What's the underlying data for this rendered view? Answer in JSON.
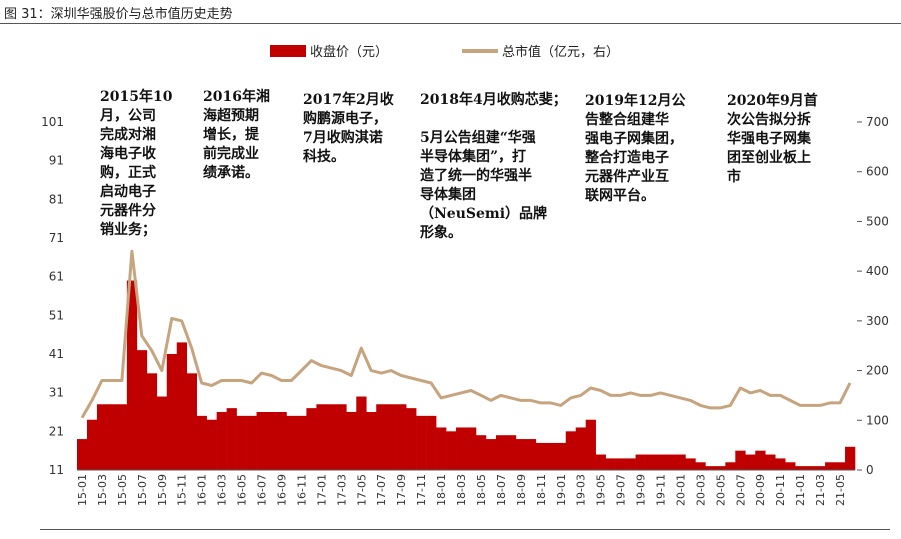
{
  "figure_title": "图 31：深圳华强股价与总市值历史走势",
  "chart_data": {
    "type": "bar+line",
    "series": [
      {
        "name": "收盘价（元）",
        "kind": "bar",
        "axis": "left",
        "color": "#C00000",
        "x": [
          "15-01",
          "15-02",
          "15-03",
          "15-04",
          "15-05",
          "15-06",
          "15-07",
          "15-08",
          "15-09",
          "15-10",
          "15-11",
          "15-12",
          "16-01",
          "16-02",
          "16-03",
          "16-04",
          "16-05",
          "16-06",
          "16-07",
          "16-08",
          "16-09",
          "16-10",
          "16-11",
          "16-12",
          "17-01",
          "17-02",
          "17-03",
          "17-04",
          "17-05",
          "17-06",
          "17-07",
          "17-08",
          "17-09",
          "17-10",
          "17-11",
          "17-12",
          "18-01",
          "18-02",
          "18-03",
          "18-04",
          "18-05",
          "18-06",
          "18-07",
          "18-08",
          "18-09",
          "18-10",
          "18-11",
          "18-12",
          "19-01",
          "19-02",
          "19-03",
          "19-04",
          "19-05",
          "19-06",
          "19-07",
          "19-08",
          "19-09",
          "19-10",
          "19-11",
          "19-12",
          "20-01",
          "20-02",
          "20-03",
          "20-04",
          "20-05",
          "20-06",
          "20-07",
          "20-08",
          "20-09",
          "20-10",
          "20-11",
          "20-12",
          "21-01",
          "21-02",
          "21-03",
          "21-04",
          "21-05",
          "21-06"
        ],
        "values": [
          19,
          24,
          28,
          28,
          28,
          60,
          42,
          36,
          30,
          41,
          44,
          36,
          25,
          24,
          26,
          27,
          25,
          25,
          26,
          26,
          26,
          25,
          25,
          27,
          28,
          28,
          28,
          26,
          30,
          26,
          28,
          28,
          28,
          27,
          25,
          25,
          22,
          21,
          22,
          22,
          20,
          19,
          20,
          20,
          19,
          19,
          18,
          18,
          18,
          21,
          22,
          24,
          15,
          14,
          14,
          14,
          15,
          15,
          15,
          15,
          15,
          14,
          13,
          12,
          12,
          13,
          16,
          15,
          16,
          15,
          14,
          13,
          12,
          12,
          12,
          13,
          13,
          17
        ]
      },
      {
        "name": "总市值（亿元，右）",
        "kind": "line",
        "axis": "right",
        "color": "#C6A47E",
        "x": [
          "15-01",
          "15-02",
          "15-03",
          "15-04",
          "15-05",
          "15-06",
          "15-07",
          "15-08",
          "15-09",
          "15-10",
          "15-11",
          "15-12",
          "16-01",
          "16-02",
          "16-03",
          "16-04",
          "16-05",
          "16-06",
          "16-07",
          "16-08",
          "16-09",
          "16-10",
          "16-11",
          "16-12",
          "17-01",
          "17-02",
          "17-03",
          "17-04",
          "17-05",
          "17-06",
          "17-07",
          "17-08",
          "17-09",
          "17-10",
          "17-11",
          "17-12",
          "18-01",
          "18-02",
          "18-03",
          "18-04",
          "18-05",
          "18-06",
          "18-07",
          "18-08",
          "18-09",
          "18-10",
          "18-11",
          "18-12",
          "19-01",
          "19-02",
          "19-03",
          "19-04",
          "19-05",
          "19-06",
          "19-07",
          "19-08",
          "19-09",
          "19-10",
          "19-11",
          "19-12",
          "20-01",
          "20-02",
          "20-03",
          "20-04",
          "20-05",
          "20-06",
          "20-07",
          "20-08",
          "20-09",
          "20-10",
          "20-11",
          "20-12",
          "21-01",
          "21-02",
          "21-03",
          "21-04",
          "21-05",
          "21-06"
        ],
        "values": [
          105,
          140,
          180,
          180,
          180,
          440,
          270,
          240,
          200,
          305,
          300,
          245,
          175,
          170,
          180,
          180,
          180,
          175,
          195,
          190,
          180,
          180,
          200,
          220,
          210,
          205,
          200,
          190,
          245,
          200,
          195,
          200,
          190,
          185,
          180,
          175,
          145,
          150,
          155,
          160,
          150,
          140,
          150,
          145,
          140,
          140,
          135,
          135,
          130,
          145,
          150,
          165,
          160,
          150,
          150,
          155,
          150,
          150,
          155,
          150,
          145,
          140,
          130,
          125,
          125,
          130,
          165,
          155,
          160,
          150,
          150,
          140,
          130,
          130,
          130,
          135,
          135,
          175
        ]
      }
    ],
    "x_tick_labels": [
      "15-01",
      "15-03",
      "15-05",
      "15-07",
      "15-09",
      "15-11",
      "16-01",
      "16-03",
      "16-05",
      "16-07",
      "16-09",
      "16-11",
      "17-01",
      "17-03",
      "17-05",
      "17-07",
      "17-09",
      "17-11",
      "18-01",
      "18-03",
      "18-05",
      "18-07",
      "18-09",
      "18-11",
      "19-01",
      "19-03",
      "19-05",
      "19-07",
      "19-09",
      "19-11",
      "20-01",
      "20-03",
      "20-05",
      "20-07",
      "20-09",
      "20-11",
      "21-01",
      "21-03",
      "21-05"
    ],
    "y_left": {
      "ylim": [
        11,
        101
      ],
      "ticks": [
        "101",
        "91",
        "81",
        "71",
        "61",
        "51",
        "41",
        "31",
        "21",
        "11"
      ]
    },
    "y_right": {
      "ylim": [
        0,
        700
      ],
      "ticks": [
        "700",
        "600",
        "500",
        "400",
        "300",
        "200",
        "100",
        "0"
      ]
    },
    "legend": {
      "placement": "top-center"
    }
  },
  "annotations": [
    {
      "id": "a2015",
      "text": "2015年10\n月，公司\n完成对湘\n海电子收\n购，正式\n启动电子\n元器件分\n销业务；"
    },
    {
      "id": "a2016",
      "text": "2016年湘\n海超预期\n增长，提\n前完成业\n绩承诺。"
    },
    {
      "id": "a2017",
      "text": "2017年2月收\n购鹏源电子，\n7月收购淇诺\n科技。"
    },
    {
      "id": "a2018",
      "text": "2018年4月收购芯斐；\n\n5月公告组建“华强\n半导体集团”，打\n造了统一的华强半\n导体集团\n（NeuSemi）品牌\n形象。"
    },
    {
      "id": "a2019",
      "text": "2019年12月公\n告整合组建华\n强电子网集团，\n整合打造电子\n元器件产业互\n联网平台。"
    },
    {
      "id": "a2020",
      "text": "2020年9月首\n次公告拟分拆\n华强电子网集\n团至创业板上\n市"
    }
  ]
}
